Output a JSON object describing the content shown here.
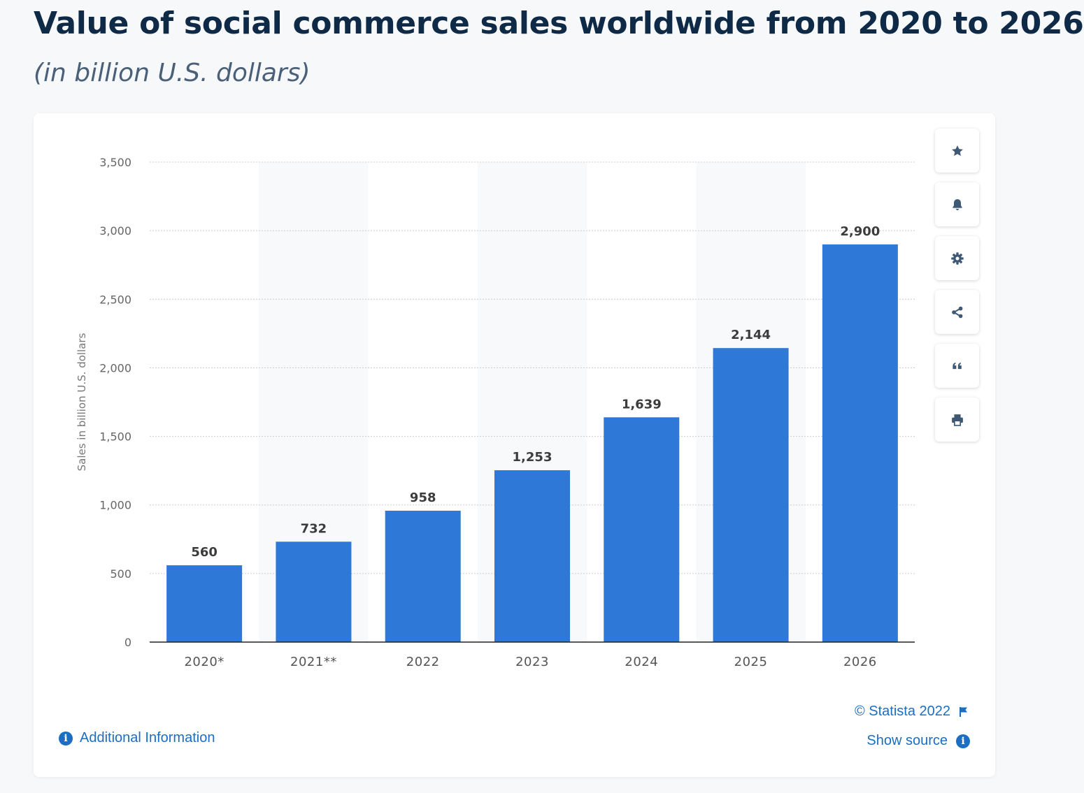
{
  "header": {
    "title": "Value of social commerce sales worldwide from 2020 to 2026",
    "subtitle": "(in billion U.S. dollars)"
  },
  "toolbar": {
    "buttons": [
      "star-icon",
      "bell-icon",
      "gear-icon",
      "share-icon",
      "quote-icon",
      "print-icon"
    ]
  },
  "footer": {
    "additional_info": "Additional Information",
    "copyright": "© Statista 2022",
    "show_source": "Show source"
  },
  "colors": {
    "bar": "#2e78d8",
    "accent": "#1b6ec2"
  },
  "chart_data": {
    "type": "bar",
    "categories": [
      "2020*",
      "2021**",
      "2022",
      "2023",
      "2024",
      "2025",
      "2026"
    ],
    "values": [
      560,
      732,
      958,
      1253,
      1639,
      2144,
      2900
    ],
    "value_labels": [
      "560",
      "732",
      "958",
      "1,253",
      "1,639",
      "2,144",
      "2,900"
    ],
    "ylabel": "Sales in billion U.S. dollars",
    "ylim": [
      0,
      3500
    ],
    "yticks": [
      0,
      500,
      1000,
      1500,
      2000,
      2500,
      3000,
      3500
    ],
    "ytick_labels": [
      "0",
      "500",
      "1,000",
      "1,500",
      "2,000",
      "2,500",
      "3,000",
      "3,500"
    ],
    "grid": true
  }
}
